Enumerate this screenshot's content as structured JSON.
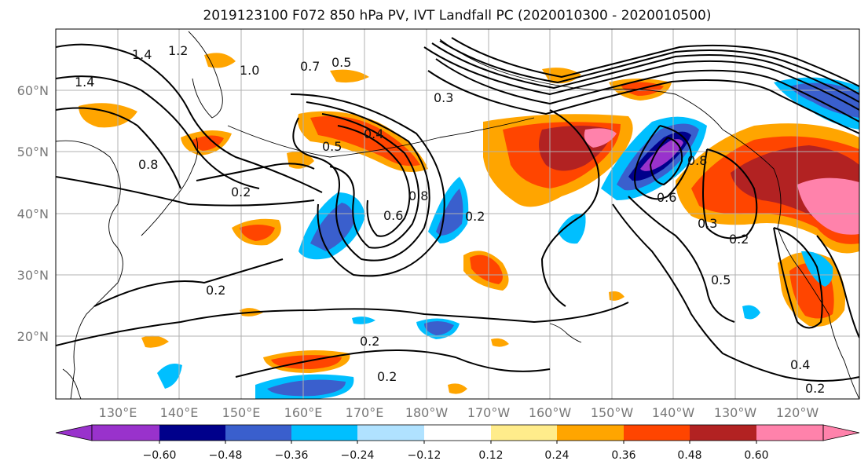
{
  "title": "2019123100 F072 850 hPa PV, IVT Landfall PC (2020010300 - 2020010500)",
  "map": {
    "lat_labels": [
      "60°N",
      "50°N",
      "40°N",
      "30°N",
      "20°N"
    ],
    "lon_labels": [
      "130°E",
      "140°E",
      "150°E",
      "160°E",
      "170°E",
      "180°W",
      "170°W",
      "160°W",
      "150°W",
      "140°W",
      "130°W",
      "120°W"
    ],
    "contour_labels": [
      "1.4",
      "1.2",
      "1.0",
      "0.7",
      "0.5",
      "0.3",
      "0.2",
      "0.4",
      "0.6",
      "0.8",
      "0.2",
      "0.2",
      "0.2",
      "0.2",
      "0.4",
      "0.2",
      "1.4",
      "0.8",
      "0.5",
      "0.6",
      "0.8",
      "0.5",
      "0.3",
      "0.2"
    ]
  },
  "colorbar": {
    "tick_labels": [
      "−0.60",
      "−0.48",
      "−0.36",
      "−0.24",
      "−0.12",
      "0.12",
      "0.24",
      "0.36",
      "0.48",
      "0.60"
    ],
    "colors": [
      "#9932cc",
      "#00008b",
      "#3a5fcd",
      "#00bfff",
      "#b0e2ff",
      "#ffffff",
      "#ffec8b",
      "#ffa500",
      "#ff4500",
      "#b22222",
      "#ff82ab"
    ]
  }
}
